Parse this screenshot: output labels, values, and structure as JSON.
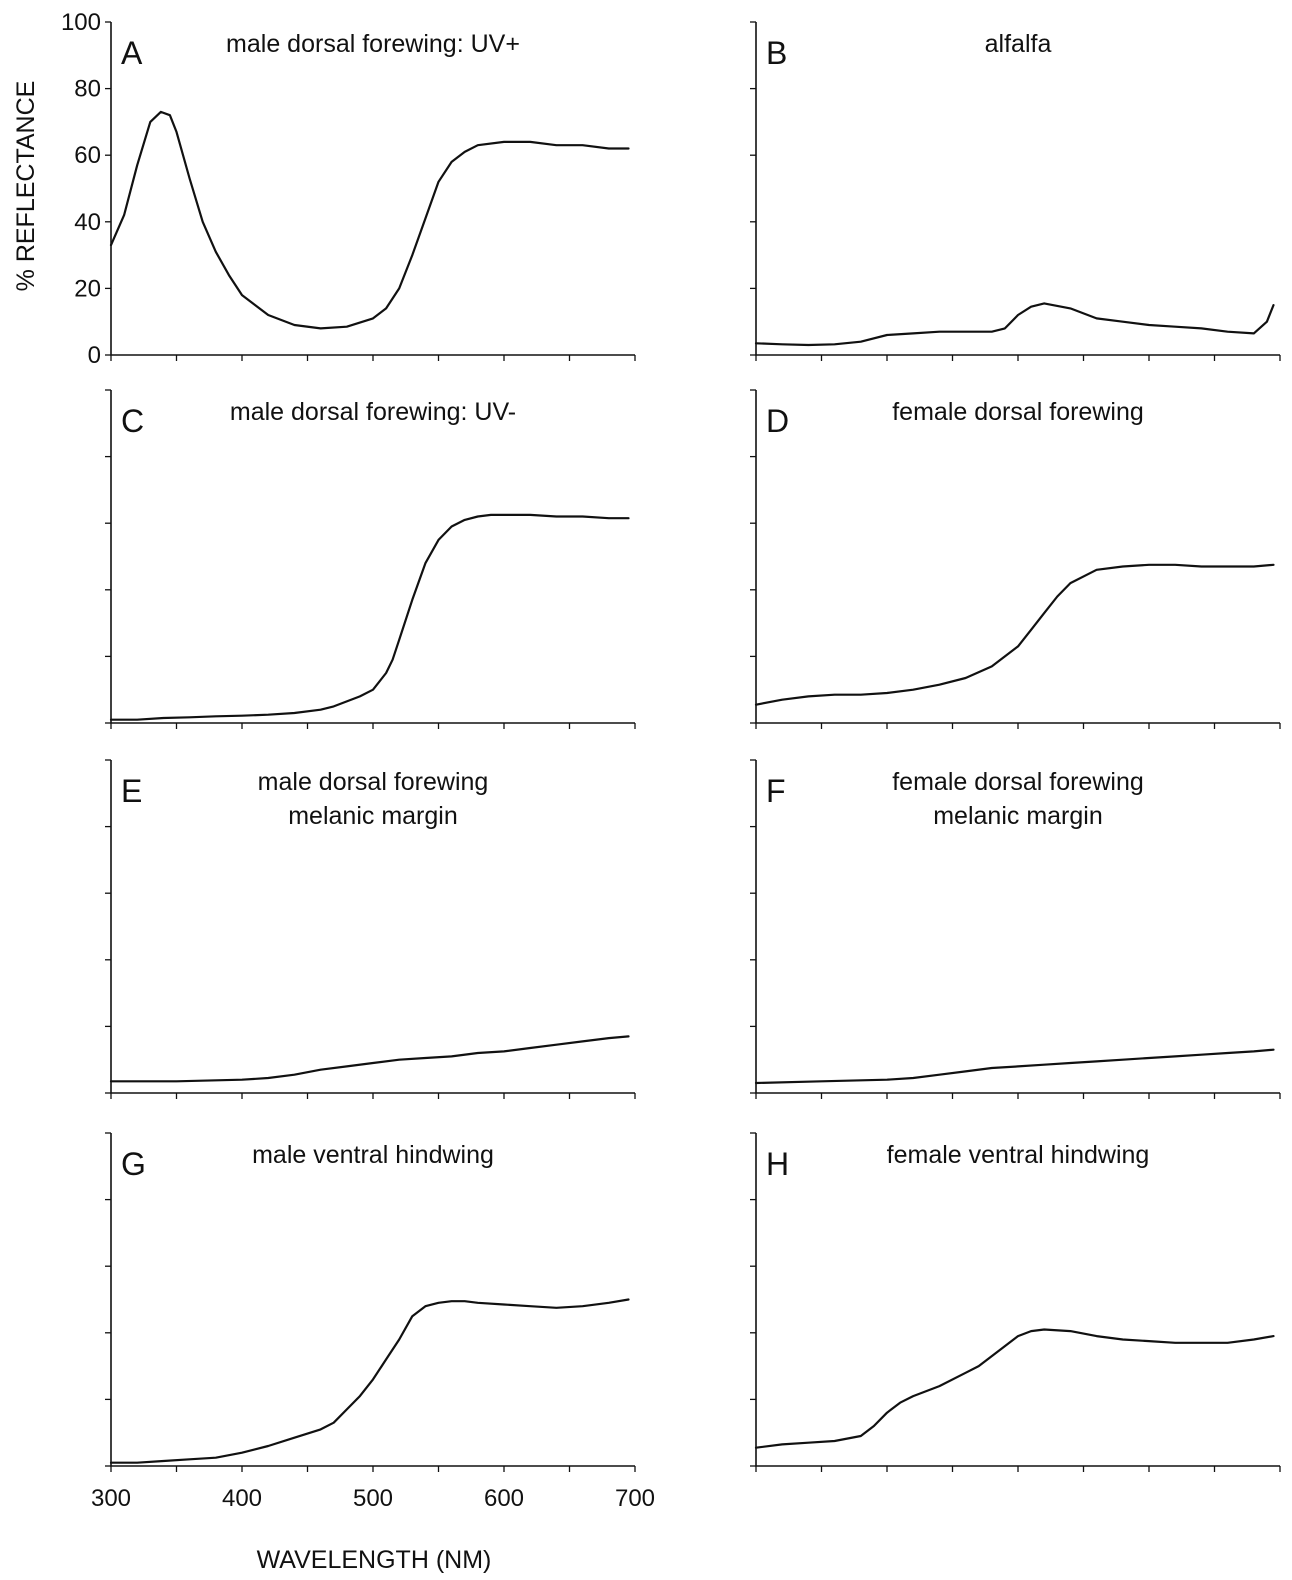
{
  "chart_data": {
    "type": "line",
    "ylabel": "% REFLECTANCE",
    "xlabel": "WAVELENGTH (NM)",
    "xlim": [
      300,
      700
    ],
    "ylim": [
      0,
      100
    ],
    "x_ticks": [
      "300",
      "400",
      "500",
      "600",
      "700"
    ],
    "y_ticks": [
      "0",
      "20",
      "40",
      "60",
      "80",
      "100"
    ],
    "panels": [
      {
        "letter": "A",
        "title_lines": [
          "male dorsal forewing: UV+"
        ],
        "x": [
          300,
          310,
          320,
          330,
          338,
          345,
          350,
          360,
          370,
          380,
          390,
          400,
          420,
          440,
          460,
          480,
          500,
          510,
          520,
          530,
          540,
          550,
          560,
          570,
          580,
          600,
          620,
          640,
          660,
          680,
          695
        ],
        "y": [
          33,
          42,
          57,
          70,
          73,
          72,
          67,
          53,
          40,
          31,
          24,
          18,
          12,
          9,
          8,
          8.5,
          11,
          14,
          20,
          30,
          41,
          52,
          58,
          61,
          63,
          64,
          64,
          63,
          63,
          62,
          62
        ]
      },
      {
        "letter": "B",
        "title_lines": [
          "alfalfa"
        ],
        "x": [
          300,
          320,
          340,
          360,
          380,
          400,
          420,
          440,
          460,
          480,
          490,
          500,
          510,
          520,
          540,
          560,
          580,
          600,
          620,
          640,
          660,
          680,
          690,
          695
        ],
        "y": [
          3.5,
          3.2,
          3,
          3.2,
          4,
          6,
          6.5,
          7,
          7,
          7,
          8,
          12,
          14.5,
          15.5,
          14,
          11,
          10,
          9,
          8.5,
          8,
          7,
          6.5,
          10,
          15
        ]
      },
      {
        "letter": "C",
        "title_lines": [
          "male dorsal forewing: UV-"
        ],
        "x": [
          300,
          320,
          340,
          360,
          380,
          400,
          420,
          440,
          460,
          470,
          480,
          490,
          500,
          510,
          515,
          520,
          530,
          540,
          550,
          560,
          570,
          580,
          590,
          600,
          620,
          640,
          660,
          680,
          695
        ],
        "y": [
          1,
          1,
          1.5,
          1.7,
          2,
          2.2,
          2.5,
          3,
          4,
          5,
          6.5,
          8,
          10,
          15,
          19,
          25,
          37,
          48,
          55,
          59,
          61,
          62,
          62.5,
          62.5,
          62.5,
          62,
          62,
          61.5,
          61.5
        ]
      },
      {
        "letter": "D",
        "title_lines": [
          "female dorsal forewing"
        ],
        "x": [
          300,
          320,
          340,
          360,
          380,
          400,
          420,
          440,
          460,
          480,
          500,
          510,
          520,
          530,
          540,
          560,
          580,
          600,
          620,
          640,
          660,
          680,
          695
        ],
        "y": [
          5.5,
          7,
          8,
          8.5,
          8.5,
          9,
          10,
          11.5,
          13.5,
          17,
          23,
          28,
          33,
          38,
          42,
          46,
          47,
          47.5,
          47.5,
          47,
          47,
          47,
          47.5
        ]
      },
      {
        "letter": "E",
        "title_lines": [
          "male dorsal forewing",
          "melanic margin"
        ],
        "x": [
          300,
          350,
          400,
          420,
          440,
          460,
          480,
          500,
          520,
          540,
          560,
          580,
          600,
          620,
          640,
          660,
          680,
          695
        ],
        "y": [
          3.5,
          3.5,
          4,
          4.5,
          5.5,
          7,
          8,
          9,
          10,
          10.5,
          11,
          12,
          12.5,
          13.5,
          14.5,
          15.5,
          16.5,
          17
        ]
      },
      {
        "letter": "F",
        "title_lines": [
          "female dorsal forewing",
          "melanic margin"
        ],
        "x": [
          300,
          350,
          400,
          420,
          440,
          460,
          480,
          500,
          520,
          540,
          560,
          580,
          600,
          620,
          640,
          660,
          680,
          695
        ],
        "y": [
          3,
          3.5,
          4,
          4.5,
          5.5,
          6.5,
          7.5,
          8,
          8.5,
          9,
          9.5,
          10,
          10.5,
          11,
          11.5,
          12,
          12.5,
          13
        ]
      },
      {
        "letter": "G",
        "title_lines": [
          "male ventral hindwing"
        ],
        "x": [
          300,
          320,
          340,
          360,
          380,
          400,
          420,
          440,
          460,
          470,
          480,
          490,
          500,
          510,
          520,
          530,
          540,
          550,
          560,
          570,
          580,
          600,
          620,
          640,
          660,
          680,
          695
        ],
        "y": [
          1,
          1,
          1.5,
          2,
          2.5,
          4,
          6,
          8.5,
          11,
          13,
          17,
          21,
          26,
          32,
          38,
          45,
          48,
          49,
          49.5,
          49.5,
          49,
          48.5,
          48,
          47.5,
          48,
          49,
          50
        ]
      },
      {
        "letter": "H",
        "title_lines": [
          "female ventral hindwing"
        ],
        "x": [
          300,
          320,
          340,
          360,
          380,
          390,
          400,
          410,
          420,
          440,
          460,
          470,
          480,
          490,
          500,
          510,
          520,
          540,
          560,
          580,
          600,
          620,
          640,
          660,
          680,
          695
        ],
        "y": [
          5.5,
          6.5,
          7,
          7.5,
          9,
          12,
          16,
          19,
          21,
          24,
          28,
          30,
          33,
          36,
          39,
          40.5,
          41,
          40.5,
          39,
          38,
          37.5,
          37,
          37,
          37,
          38,
          39
        ]
      }
    ]
  }
}
